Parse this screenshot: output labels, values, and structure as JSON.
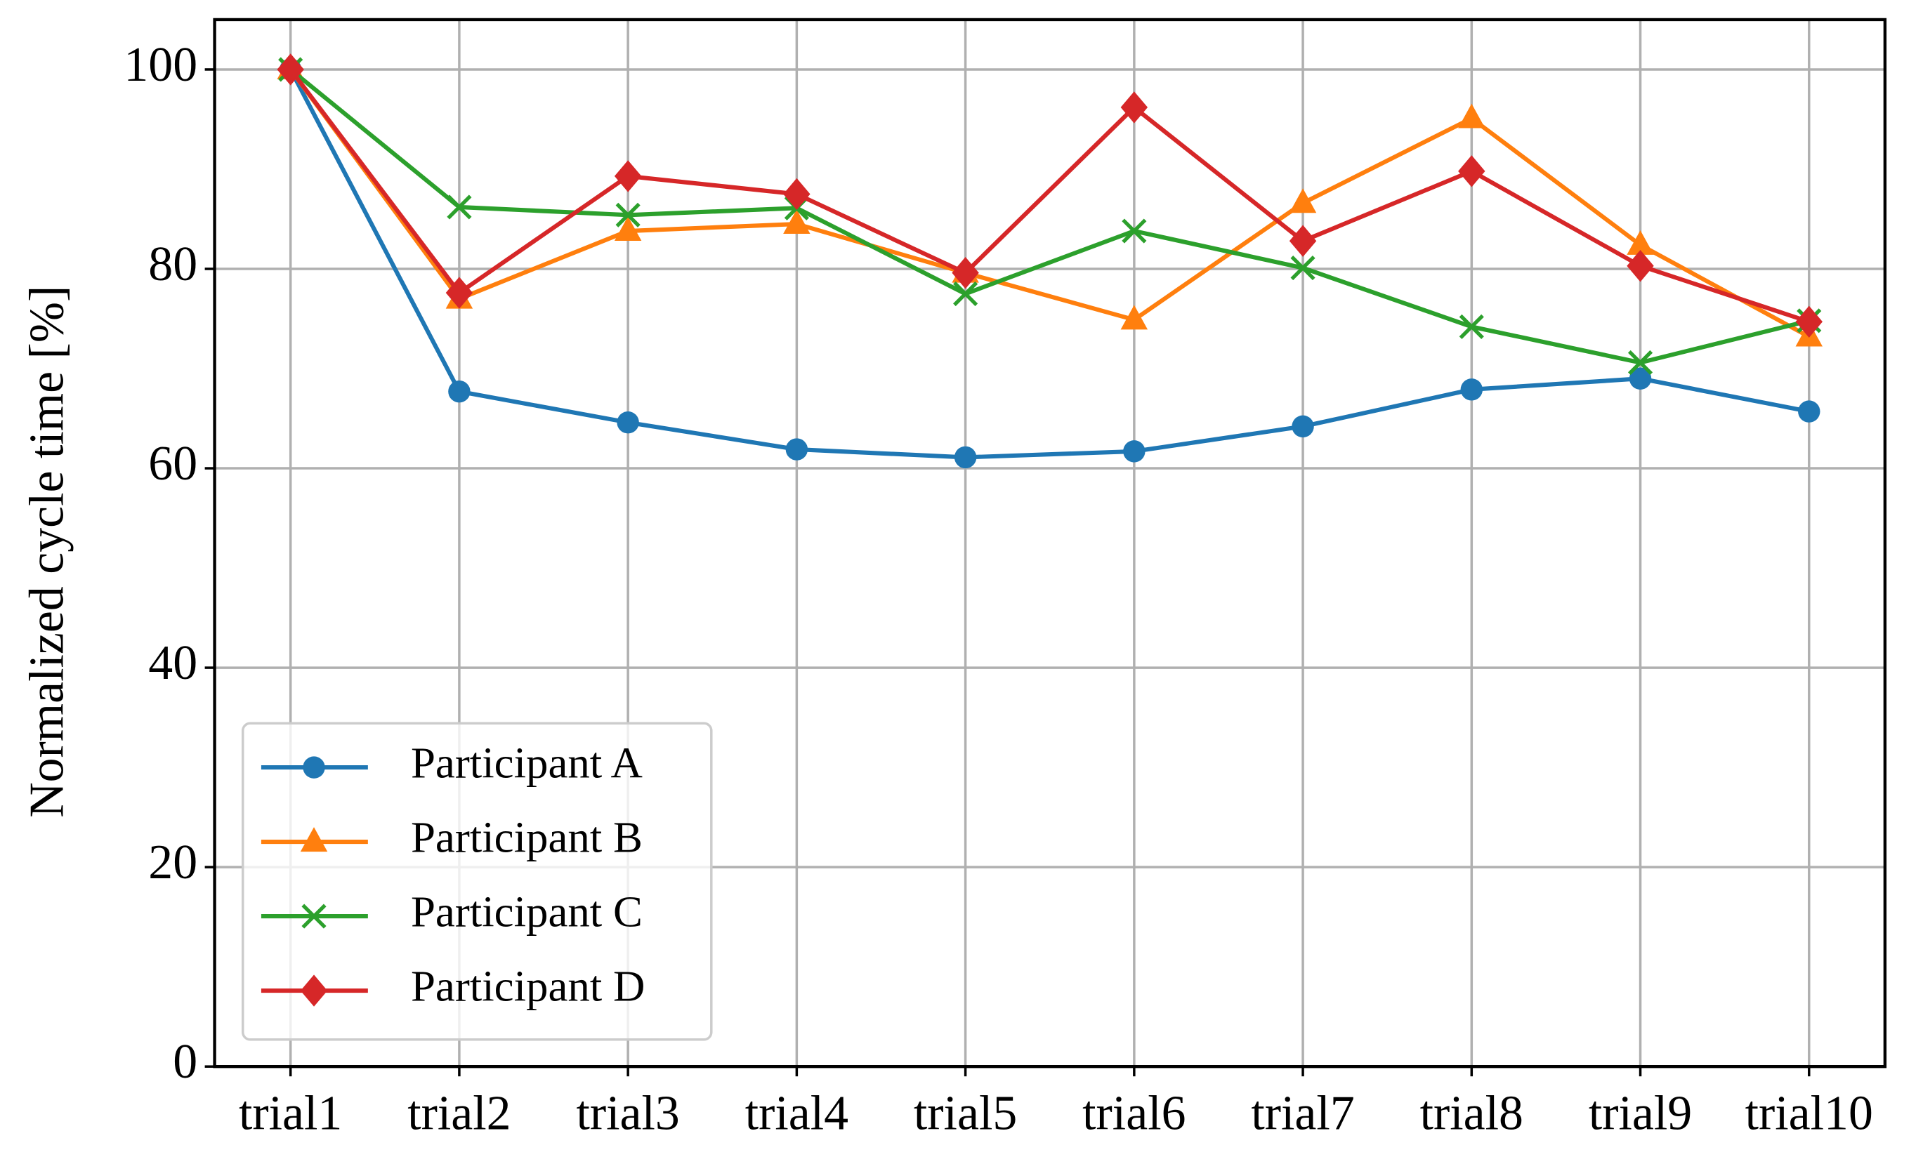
{
  "chart_data": {
    "type": "line",
    "y_label": "Normalized cycle time [%]",
    "categories": [
      "trial1",
      "trial2",
      "trial3",
      "trial4",
      "trial5",
      "trial6",
      "trial7",
      "trial8",
      "trial9",
      "trial10"
    ],
    "series": [
      {
        "name": "Participant A",
        "color": "#1f77b4",
        "marker": "circle",
        "values": [
          100,
          67.7,
          64.6,
          61.9,
          61.1,
          61.7,
          64.2,
          67.9,
          69.0,
          65.7
        ]
      },
      {
        "name": "Participant B",
        "color": "#ff7f0e",
        "marker": "triangle",
        "values": [
          100,
          77.0,
          83.8,
          84.5,
          79.6,
          74.9,
          86.6,
          95.1,
          82.4,
          73.2
        ]
      },
      {
        "name": "Participant C",
        "color": "#2ca02c",
        "marker": "x",
        "values": [
          100,
          86.2,
          85.4,
          86.1,
          77.5,
          83.8,
          80.1,
          74.2,
          70.6,
          74.8
        ]
      },
      {
        "name": "Participant D",
        "color": "#d62728",
        "marker": "diamond",
        "values": [
          100,
          77.6,
          89.3,
          87.5,
          79.6,
          96.2,
          82.8,
          89.8,
          80.3,
          74.7
        ]
      }
    ],
    "ylim": [
      0,
      105
    ],
    "yticks": [
      0,
      20,
      40,
      60,
      80,
      100
    ],
    "grid": true,
    "legend": "lower left"
  }
}
